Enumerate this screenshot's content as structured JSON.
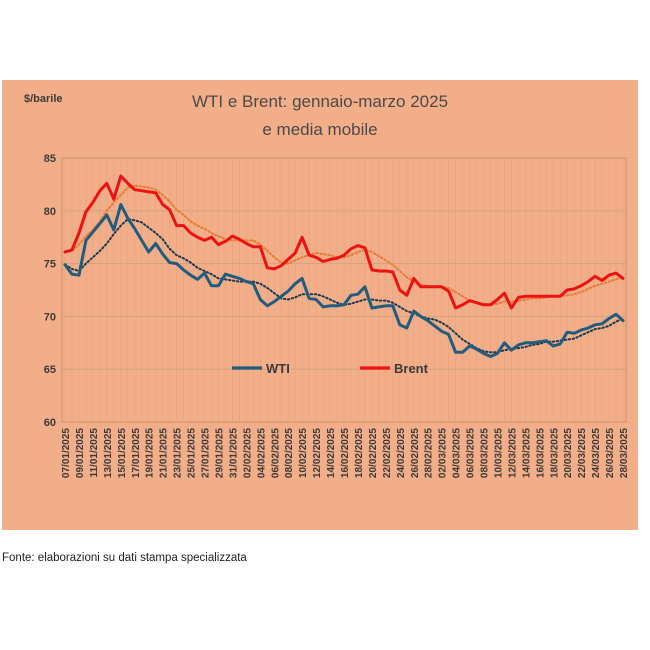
{
  "chart_data": {
    "type": "line",
    "title_line1": "WTI e Brent: gennaio-marzo 2025",
    "title_line2": "e media mobile",
    "ylabel": "$/barile",
    "ylim": [
      60,
      85
    ],
    "yticks": [
      60,
      65,
      70,
      75,
      80,
      85
    ],
    "grid": true,
    "legend_placement": "center",
    "x": [
      "07/01/2025",
      "08/01/2025",
      "09/01/2025",
      "10/01/2025",
      "11/01/2025",
      "12/01/2025",
      "13/01/2025",
      "14/01/2025",
      "15/01/2025",
      "16/01/2025",
      "17/01/2025",
      "18/01/2025",
      "19/01/2025",
      "20/01/2025",
      "21/01/2025",
      "22/01/2025",
      "23/01/2025",
      "24/01/2025",
      "25/01/2025",
      "26/01/2025",
      "27/01/2025",
      "28/01/2025",
      "29/01/2025",
      "30/01/2025",
      "31/01/2025",
      "01/02/2025",
      "02/02/2025",
      "03/02/2025",
      "04/02/2025",
      "05/02/2025",
      "06/02/2025",
      "07/02/2025",
      "08/02/2025",
      "09/02/2025",
      "10/02/2025",
      "11/02/2025",
      "12/02/2025",
      "13/02/2025",
      "14/02/2025",
      "15/02/2025",
      "16/02/2025",
      "17/02/2025",
      "18/02/2025",
      "19/02/2025",
      "20/02/2025",
      "21/02/2025",
      "22/02/2025",
      "23/02/2025",
      "24/02/2025",
      "25/02/2025",
      "26/02/2025",
      "27/02/2025",
      "28/02/2025",
      "01/03/2025",
      "02/03/2025",
      "03/03/2025",
      "04/03/2025",
      "05/03/2025",
      "06/03/2025",
      "07/03/2025",
      "08/03/2025",
      "09/03/2025",
      "10/03/2025",
      "11/03/2025",
      "12/03/2025",
      "13/03/2025",
      "14/03/2025",
      "15/03/2025",
      "16/03/2025",
      "17/03/2025",
      "18/03/2025",
      "19/03/2025",
      "20/03/2025",
      "21/03/2025",
      "22/03/2025",
      "23/03/2025",
      "24/03/2025",
      "25/03/2025",
      "26/03/2025",
      "27/03/2025",
      "28/03/2025"
    ],
    "xtick_labels": [
      "07/01/2025",
      "09/01/2025",
      "11/01/2025",
      "13/01/2025",
      "15/01/2025",
      "17/01/2025",
      "19/01/2025",
      "21/01/2025",
      "23/01/2025",
      "25/01/2025",
      "27/01/2025",
      "29/01/2025",
      "31/01/2025",
      "02/02/2025",
      "04/02/2025",
      "06/02/2025",
      "08/02/2025",
      "10/02/2025",
      "12/02/2025",
      "14/02/2025",
      "16/02/2025",
      "18/02/2025",
      "20/02/2025",
      "22/02/2025",
      "24/02/2025",
      "26/02/2025",
      "28/02/2025",
      "02/03/2025",
      "04/03/2025",
      "06/03/2025",
      "08/03/2025",
      "10/03/2025",
      "12/03/2025",
      "14/03/2025",
      "16/03/2025",
      "18/03/2025",
      "20/03/2025",
      "22/03/2025",
      "24/03/2025",
      "26/03/2025",
      "28/03/2025"
    ],
    "series": [
      {
        "name": "WTI",
        "color": "#1F5C80",
        "style": "solid",
        "legend": true,
        "values": [
          74.9,
          74.0,
          73.9,
          77.2,
          78.0,
          78.8,
          79.6,
          78.2,
          80.6,
          79.3,
          78.3,
          77.2,
          76.1,
          76.9,
          75.9,
          75.1,
          75.0,
          74.4,
          73.9,
          73.5,
          74.1,
          72.9,
          72.9,
          74.0,
          73.8,
          73.6,
          73.3,
          73.1,
          71.6,
          71.0,
          71.4,
          71.9,
          72.4,
          73.1,
          73.6,
          71.7,
          71.6,
          70.9,
          71.0,
          71.0,
          71.1,
          72.0,
          72.1,
          72.8,
          70.8,
          70.9,
          71.0,
          71.0,
          69.2,
          68.9,
          70.5,
          70.0,
          69.6,
          69.1,
          68.6,
          68.3,
          66.6,
          66.6,
          67.2,
          66.9,
          66.5,
          66.2,
          66.5,
          67.5,
          66.8,
          67.3,
          67.5,
          67.5,
          67.6,
          67.7,
          67.2,
          67.4,
          68.5,
          68.4,
          68.7,
          68.9,
          69.2,
          69.3,
          69.8,
          70.2,
          69.6
        ]
      },
      {
        "name": "Brent",
        "color": "#EE1111",
        "style": "solid",
        "legend": true,
        "values": [
          76.1,
          76.3,
          77.9,
          79.9,
          80.8,
          81.9,
          82.6,
          81.1,
          83.3,
          82.6,
          82.0,
          81.9,
          81.8,
          81.7,
          80.6,
          80.1,
          78.6,
          78.6,
          77.9,
          77.5,
          77.2,
          77.5,
          76.8,
          77.1,
          77.6,
          77.3,
          76.9,
          76.6,
          76.6,
          74.6,
          74.5,
          74.8,
          75.4,
          76.0,
          77.5,
          75.8,
          75.6,
          75.2,
          75.4,
          75.5,
          75.8,
          76.4,
          76.7,
          76.5,
          74.4,
          74.3,
          74.3,
          74.2,
          72.5,
          72.0,
          73.6,
          72.8,
          72.8,
          72.8,
          72.8,
          72.4,
          70.8,
          71.1,
          71.5,
          71.3,
          71.1,
          71.1,
          71.6,
          72.2,
          70.8,
          71.8,
          71.9,
          71.9,
          71.9,
          71.9,
          71.9,
          71.9,
          72.5,
          72.6,
          72.9,
          73.3,
          73.8,
          73.4,
          73.9,
          74.1,
          73.6
        ]
      },
      {
        "name": "WTI media mobile",
        "color": "#1a3a52",
        "style": "dotted",
        "legend": false,
        "values": [
          74.9,
          74.5,
          74.3,
          75.0,
          75.6,
          76.2,
          76.9,
          77.8,
          78.6,
          79.2,
          79.1,
          78.9,
          78.4,
          77.9,
          77.3,
          76.4,
          75.8,
          75.5,
          75.1,
          74.6,
          74.3,
          74.0,
          73.6,
          73.5,
          73.4,
          73.3,
          73.3,
          73.3,
          73.1,
          72.7,
          72.2,
          71.7,
          71.6,
          71.8,
          72.1,
          72.1,
          72.1,
          71.9,
          71.6,
          71.3,
          71.1,
          71.2,
          71.4,
          71.6,
          71.6,
          71.5,
          71.5,
          71.3,
          70.9,
          70.5,
          70.3,
          70.0,
          69.8,
          69.7,
          69.4,
          69.0,
          68.4,
          67.8,
          67.4,
          67.0,
          66.7,
          66.6,
          66.6,
          66.8,
          66.9,
          67.0,
          67.1,
          67.3,
          67.4,
          67.6,
          67.6,
          67.7,
          67.8,
          67.9,
          68.2,
          68.5,
          68.8,
          68.9,
          69.1,
          69.5,
          69.8
        ]
      },
      {
        "name": "Brent media mobile",
        "color": "#E97A30",
        "style": "dotted",
        "legend": false,
        "values": [
          76.1,
          76.2,
          76.8,
          77.6,
          78.2,
          79.0,
          80.0,
          80.8,
          81.5,
          82.2,
          82.4,
          82.3,
          82.2,
          82.0,
          81.5,
          80.9,
          80.1,
          79.6,
          79.0,
          78.6,
          78.3,
          77.9,
          77.6,
          77.3,
          77.2,
          77.2,
          77.2,
          77.2,
          76.8,
          76.2,
          75.6,
          75.1,
          75.0,
          75.3,
          75.6,
          75.8,
          76.0,
          75.9,
          75.8,
          75.6,
          75.6,
          75.8,
          76.1,
          76.3,
          76.1,
          75.7,
          75.3,
          74.9,
          74.3,
          73.7,
          73.3,
          73.0,
          72.9,
          72.8,
          72.8,
          72.7,
          72.3,
          71.9,
          71.5,
          71.3,
          71.2,
          71.1,
          71.2,
          71.4,
          71.4,
          71.5,
          71.6,
          71.7,
          71.7,
          71.8,
          71.9,
          71.9,
          72.0,
          72.1,
          72.3,
          72.6,
          72.9,
          73.1,
          73.3,
          73.5,
          73.7
        ]
      }
    ]
  },
  "source_note": "Fonte: elaborazioni su dati stampa specializzata"
}
